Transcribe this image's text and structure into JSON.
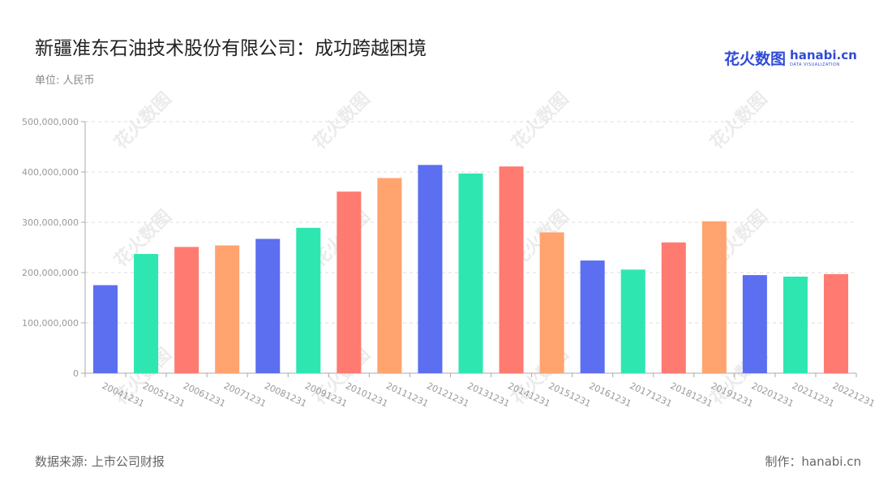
{
  "title": "新疆准东石油技术股份有限公司：成功跨越困境",
  "unit": "单位: 人民币",
  "source": "数据来源: 上市公司财报",
  "maker": "制作：hanabi.cn",
  "logo": {
    "cn": "花火数图",
    "en": "hanabi.cn",
    "sub": "DATA VISUALIZATION"
  },
  "watermark": "花火数图",
  "colors": [
    "#5b6ff0",
    "#2ee6b0",
    "#ff7a70",
    "#ffa36f"
  ],
  "chart_data": {
    "type": "bar",
    "title": "新疆准东石油技术股份有限公司：成功跨越困境",
    "xlabel": "",
    "ylabel": "",
    "ylim": [
      0,
      500000000
    ],
    "yticks": [
      0,
      100000000,
      200000000,
      300000000,
      400000000,
      500000000
    ],
    "ytick_labels": [
      "0",
      "100,000,000",
      "200,000,000",
      "300,000,000",
      "400,000,000",
      "500,000,000"
    ],
    "grid": true,
    "categories": [
      "20041231",
      "20051231",
      "20061231",
      "20071231",
      "20081231",
      "20091231",
      "20101231",
      "20111231",
      "20121231",
      "20131231",
      "20141231",
      "20151231",
      "20161231",
      "20171231",
      "20181231",
      "20191231",
      "20201231",
      "20211231",
      "20221231"
    ],
    "values": [
      175000000,
      237000000,
      251000000,
      254000000,
      267000000,
      289000000,
      361000000,
      388000000,
      414000000,
      397000000,
      411000000,
      280000000,
      224000000,
      206000000,
      260000000,
      302000000,
      195000000,
      192000000,
      197000000
    ]
  }
}
